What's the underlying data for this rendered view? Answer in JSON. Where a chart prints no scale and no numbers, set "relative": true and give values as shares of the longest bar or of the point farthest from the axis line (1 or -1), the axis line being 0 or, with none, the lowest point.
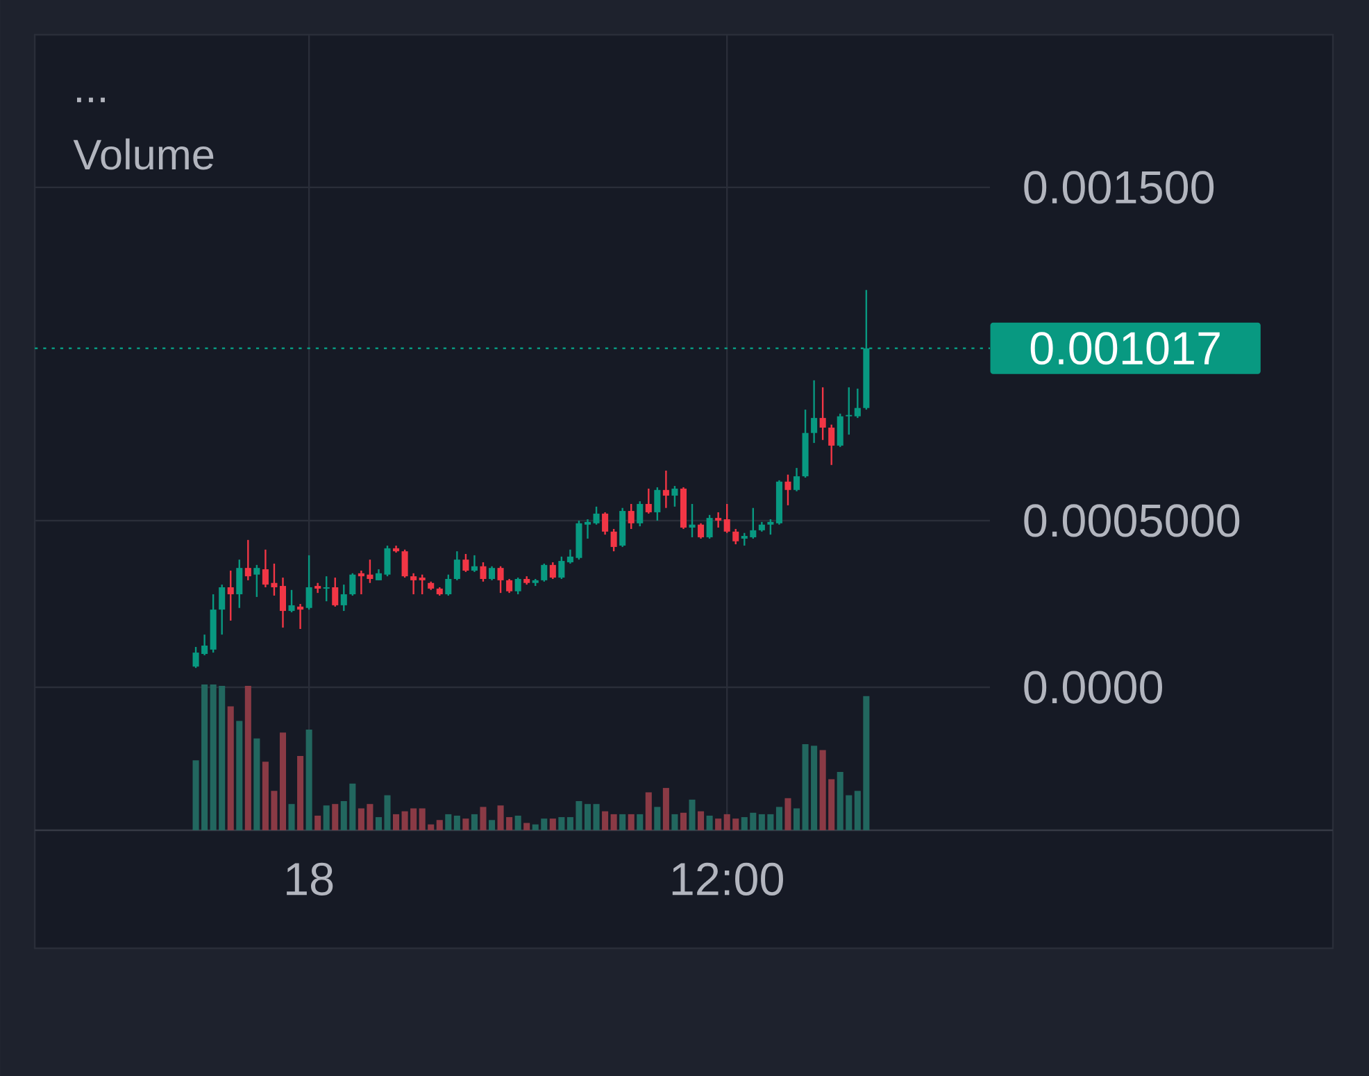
{
  "chart_data": [
    {
      "type": "candlestick",
      "annotations": [
        "..."
      ],
      "categories": [
        null,
        null,
        null,
        null,
        null,
        null,
        null,
        null,
        null,
        null,
        null,
        null,
        null,
        "18",
        null,
        null,
        null,
        null,
        null,
        null,
        null,
        null,
        null,
        null,
        null,
        null,
        null,
        null,
        null,
        null,
        null,
        null,
        null,
        null,
        null,
        null,
        null,
        null,
        null,
        null,
        null,
        null,
        null,
        null,
        null,
        null,
        null,
        null,
        null,
        null,
        null,
        null,
        null,
        null,
        null,
        null,
        null,
        null,
        null,
        null,
        null,
        "12:00",
        null,
        null,
        null,
        null,
        null,
        null,
        null,
        null,
        null,
        null,
        null,
        null,
        null,
        null,
        null,
        null
      ],
      "ohlc": [
        [
          6.2e-05,
          0.000121,
          5.8e-05,
          0.000104
        ],
        [
          0.0001,
          0.000158,
          9.6e-05,
          0.000125
        ],
        [
          0.000113,
          0.000279,
          0.000104,
          0.000233
        ],
        [
          0.000233,
          0.000308,
          0.000158,
          0.0003
        ],
        [
          0.0003,
          0.00035,
          0.0002,
          0.000279
        ],
        [
          0.000279,
          0.000383,
          0.000238,
          0.000358
        ],
        [
          0.000358,
          0.000442,
          0.000321,
          0.000333
        ],
        [
          0.000338,
          0.000367,
          0.000271,
          0.000358
        ],
        [
          0.000354,
          0.000413,
          0.0003,
          0.000308
        ],
        [
          0.000313,
          0.000371,
          0.000275,
          0.0003
        ],
        [
          0.000304,
          0.000329,
          0.000179,
          0.000229
        ],
        [
          0.000229,
          0.000292,
          0.000225,
          0.000246
        ],
        [
          0.000242,
          0.00025,
          0.000175,
          0.000233
        ],
        [
          0.000238,
          0.000396,
          0.000233,
          0.0003
        ],
        [
          0.000304,
          0.000313,
          0.000283,
          0.000296
        ],
        [
          0.000296,
          0.000333,
          0.000258,
          0.0003
        ],
        [
          0.0003,
          0.000329,
          0.000242,
          0.000246
        ],
        [
          0.000246,
          0.000308,
          0.000229,
          0.000279
        ],
        [
          0.000279,
          0.000342,
          0.000275,
          0.000338
        ],
        [
          0.000342,
          0.00035,
          0.000279,
          0.000333
        ],
        [
          0.000338,
          0.000383,
          0.000313,
          0.000325
        ],
        [
          0.000321,
          0.000354,
          0.000321,
          0.000342
        ],
        [
          0.000338,
          0.000425,
          0.000333,
          0.000417
        ],
        [
          0.000417,
          0.000425,
          0.000404,
          0.000408
        ],
        [
          0.000408,
          0.000413,
          0.000329,
          0.000333
        ],
        [
          0.000333,
          0.000342,
          0.000279,
          0.000321
        ],
        [
          0.000329,
          0.000338,
          0.000279,
          0.000321
        ],
        [
          0.000313,
          0.000317,
          0.000292,
          0.000296
        ],
        [
          0.000296,
          0.0003,
          0.000275,
          0.000279
        ],
        [
          0.000279,
          0.000338,
          0.000275,
          0.000325
        ],
        [
          0.000325,
          0.000408,
          0.000321,
          0.000383
        ],
        [
          0.000383,
          0.0004,
          0.000346,
          0.00035
        ],
        [
          0.00035,
          0.000396,
          0.000346,
          0.000363
        ],
        [
          0.000363,
          0.000375,
          0.000317,
          0.000325
        ],
        [
          0.000325,
          0.000363,
          0.000321,
          0.000358
        ],
        [
          0.000358,
          0.000363,
          0.000283,
          0.000321
        ],
        [
          0.000321,
          0.000325,
          0.000283,
          0.000288
        ],
        [
          0.000288,
          0.000329,
          0.000279,
          0.000325
        ],
        [
          0.000325,
          0.000333,
          0.000308,
          0.000313
        ],
        [
          0.000313,
          0.000325,
          0.000304,
          0.000321
        ],
        [
          0.000321,
          0.000371,
          0.000317,
          0.000367
        ],
        [
          0.000367,
          0.000375,
          0.000325,
          0.000329
        ],
        [
          0.000329,
          0.000392,
          0.000325,
          0.000379
        ],
        [
          0.000375,
          0.000413,
          0.000371,
          0.000392
        ],
        [
          0.000388,
          0.0005,
          0.000383,
          0.000492
        ],
        [
          0.000488,
          0.000504,
          0.000446,
          0.000496
        ],
        [
          0.000492,
          0.000542,
          0.000488,
          0.000521
        ],
        [
          0.000521,
          0.000525,
          0.000458,
          0.000467
        ],
        [
          0.000467,
          0.000475,
          0.000408,
          0.000421
        ],
        [
          0.000425,
          0.000538,
          0.000421,
          0.000529
        ],
        [
          0.000529,
          0.00055,
          0.000475,
          0.000492
        ],
        [
          0.000492,
          0.000558,
          0.000483,
          0.00055
        ],
        [
          0.00055,
          0.000596,
          0.000521,
          0.000525
        ],
        [
          0.000525,
          0.0006,
          0.0005,
          0.000592
        ],
        [
          0.000592,
          0.00065,
          0.000538,
          0.000575
        ],
        [
          0.000575,
          0.000604,
          0.000542,
          0.000596
        ],
        [
          0.000596,
          0.0006,
          0.000475,
          0.000479
        ],
        [
          0.000479,
          0.00055,
          0.00045,
          0.000488
        ],
        [
          0.000488,
          0.000492,
          0.000446,
          0.00045
        ],
        [
          0.00045,
          0.000517,
          0.000446,
          0.000508
        ],
        [
          0.000508,
          0.000525,
          0.000479,
          0.0005
        ],
        [
          0.000504,
          0.00055,
          0.000463,
          0.000467
        ],
        [
          0.000467,
          0.000475,
          0.000429,
          0.000438
        ],
        [
          0.000446,
          0.000463,
          0.000425,
          0.000454
        ],
        [
          0.00045,
          0.000538,
          0.000446,
          0.000471
        ],
        [
          0.000471,
          0.000496,
          0.000467,
          0.000488
        ],
        [
          0.000488,
          0.000504,
          0.000458,
          0.000496
        ],
        [
          0.000492,
          0.000621,
          0.000488,
          0.000617
        ],
        [
          0.000617,
          0.000638,
          0.000546,
          0.000592
        ],
        [
          0.000592,
          0.000658,
          0.000588,
          0.000633
        ],
        [
          0.000633,
          0.000833,
          0.000629,
          0.000763
        ],
        [
          0.000763,
          0.000921,
          0.000733,
          0.000808
        ],
        [
          0.000808,
          0.0009,
          0.000742,
          0.000779
        ],
        [
          0.000779,
          0.000788,
          0.000667,
          0.000725
        ],
        [
          0.000725,
          0.000821,
          0.000721,
          0.000813
        ],
        [
          0.000813,
          0.0009,
          0.000758,
          0.000817
        ],
        [
          0.000813,
          0.000896,
          0.000808,
          0.000838
        ],
        [
          0.000838,
          0.001192,
          0.000833,
          0.001017
        ]
      ],
      "colors": [
        "#089981",
        "#089981",
        "#089981",
        "#089981",
        "#f23645",
        "#089981",
        "#f23645",
        "#089981",
        "#f23645",
        "#f23645",
        "#f23645",
        "#089981",
        "#f23645",
        "#089981",
        "#f23645",
        "#089981",
        "#f23645",
        "#089981",
        "#089981",
        "#f23645",
        "#f23645",
        "#089981",
        "#089981",
        "#f23645",
        "#f23645",
        "#f23645",
        "#f23645",
        "#f23645",
        "#f23645",
        "#089981",
        "#089981",
        "#f23645",
        "#089981",
        "#f23645",
        "#089981",
        "#f23645",
        "#f23645",
        "#089981",
        "#f23645",
        "#089981",
        "#089981",
        "#f23645",
        "#089981",
        "#089981",
        "#089981",
        "#089981",
        "#089981",
        "#f23645",
        "#f23645",
        "#089981",
        "#f23645",
        "#089981",
        "#f23645",
        "#089981",
        "#f23645",
        "#089981",
        "#f23645",
        "#089981",
        "#f23645",
        "#089981",
        "#f23645",
        "#f23645",
        "#f23645",
        "#089981",
        "#089981",
        "#089981",
        "#089981",
        "#089981",
        "#f23645",
        "#089981",
        "#089981",
        "#089981",
        "#f23645",
        "#f23645",
        "#089981",
        "#089981",
        "#089981",
        "#089981"
      ],
      "ylim": [
        -0.000429,
        0.001958
      ],
      "yticks": [
        {
          "value": 0,
          "label": "0.0000"
        },
        {
          "value": 0.0005,
          "label": "0.0005000"
        },
        {
          "value": 0.0015,
          "label": "0.001500"
        }
      ],
      "grid": true,
      "ref_lines": [
        {
          "axis": "y",
          "value": 0.001017,
          "label": "0.001017",
          "color": "#089981",
          "line_style": "dotted"
        }
      ]
    },
    {
      "type": "bar",
      "title": "Volume",
      "relative": true,
      "categories": [
        null,
        null,
        null,
        null,
        null,
        null,
        null,
        null,
        null,
        null,
        null,
        null,
        null,
        null,
        null,
        null,
        null,
        null,
        null,
        null,
        null,
        null,
        null,
        null,
        null,
        null,
        null,
        null,
        null,
        null,
        null,
        null,
        null,
        null,
        null,
        null,
        null,
        null,
        null,
        null,
        null,
        null,
        null,
        null,
        null,
        null,
        null,
        null,
        null,
        null,
        null,
        null,
        null,
        null,
        null,
        null,
        null,
        null,
        null,
        null,
        null,
        null,
        null,
        null,
        null,
        null,
        null,
        null,
        null,
        null,
        null,
        null,
        null,
        null,
        null,
        null,
        null,
        null
      ],
      "values": [
        0.48,
        1,
        1,
        0.99,
        0.85,
        0.75,
        0.99,
        0.63,
        0.47,
        0.27,
        0.67,
        0.18,
        0.51,
        0.69,
        0.1,
        0.17,
        0.18,
        0.2,
        0.32,
        0.15,
        0.18,
        0.09,
        0.24,
        0.11,
        0.13,
        0.15,
        0.15,
        0.04,
        0.07,
        0.11,
        0.1,
        0.08,
        0.11,
        0.16,
        0.07,
        0.17,
        0.09,
        0.1,
        0.05,
        0.04,
        0.08,
        0.08,
        0.09,
        0.09,
        0.2,
        0.18,
        0.18,
        0.13,
        0.11,
        0.11,
        0.11,
        0.11,
        0.26,
        0.16,
        0.29,
        0.11,
        0.12,
        0.21,
        0.13,
        0.1,
        0.08,
        0.11,
        0.08,
        0.09,
        0.12,
        0.11,
        0.11,
        0.16,
        0.22,
        0.15,
        0.59,
        0.58,
        0.55,
        0.35,
        0.4,
        0.24,
        0.27,
        0.92
      ],
      "colors": [
        "#22675f",
        "#22675f",
        "#22675f",
        "#22675f",
        "#8a3a45",
        "#22675f",
        "#8a3a45",
        "#22675f",
        "#8a3a45",
        "#8a3a45",
        "#8a3a45",
        "#22675f",
        "#8a3a45",
        "#22675f",
        "#8a3a45",
        "#22675f",
        "#8a3a45",
        "#22675f",
        "#22675f",
        "#8a3a45",
        "#8a3a45",
        "#22675f",
        "#22675f",
        "#8a3a45",
        "#8a3a45",
        "#8a3a45",
        "#8a3a45",
        "#8a3a45",
        "#8a3a45",
        "#22675f",
        "#22675f",
        "#8a3a45",
        "#22675f",
        "#8a3a45",
        "#22675f",
        "#8a3a45",
        "#8a3a45",
        "#22675f",
        "#8a3a45",
        "#22675f",
        "#22675f",
        "#8a3a45",
        "#22675f",
        "#22675f",
        "#22675f",
        "#22675f",
        "#22675f",
        "#8a3a45",
        "#8a3a45",
        "#22675f",
        "#8a3a45",
        "#22675f",
        "#8a3a45",
        "#22675f",
        "#8a3a45",
        "#22675f",
        "#8a3a45",
        "#22675f",
        "#8a3a45",
        "#22675f",
        "#8a3a45",
        "#8a3a45",
        "#8a3a45",
        "#22675f",
        "#22675f",
        "#22675f",
        "#22675f",
        "#22675f",
        "#8a3a45",
        "#22675f",
        "#22675f",
        "#22675f",
        "#8a3a45",
        "#8a3a45",
        "#22675f",
        "#22675f",
        "#22675f",
        "#22675f"
      ]
    }
  ]
}
